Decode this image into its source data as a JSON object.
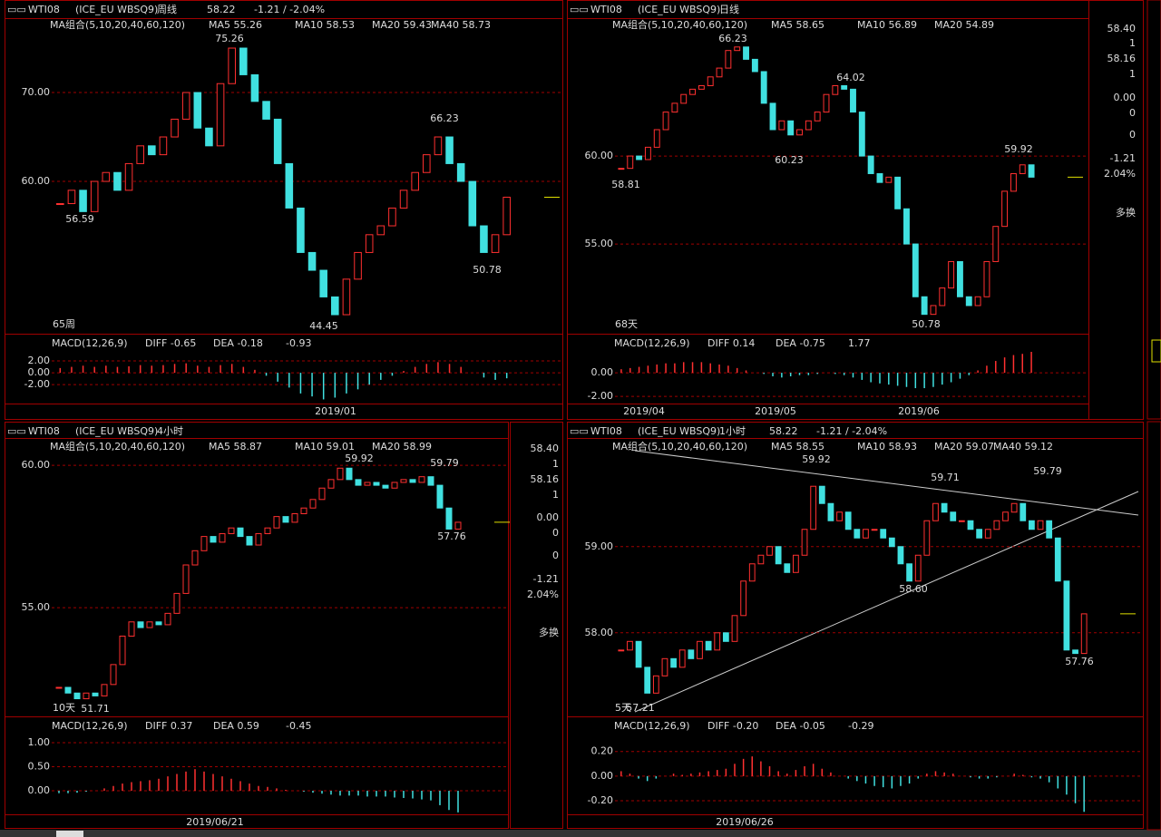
{
  "panels": [
    {
      "header": {
        "symbol": "WTI08",
        "contract": "(ICE_EU WBSQ9)",
        "period": "周线",
        "price": "58.22",
        "change": "-1.21 / -2.04%"
      },
      "ma": [
        "MA组合(5,10,20,40,60,120)",
        "MA5 55.26",
        "MA10 58.53",
        "MA20 59.43",
        "MA40 58.73"
      ],
      "macd": {
        "name": "MACD(12,26,9)",
        "diff": "DIFF -0.65",
        "dea": "DEA -0.18",
        "value": "-0.93"
      },
      "price_axis": {
        "ylim": [
          42.86,
          78.37
        ],
        "yticks": [
          {
            "value": 70,
            "label": "70.00"
          },
          {
            "value": 60,
            "label": "60.00"
          }
        ]
      },
      "macd_axis": {
        "ylim": [
          -5.2,
          6.3
        ],
        "yticks": [
          {
            "value": 2,
            "label": "2.00"
          },
          {
            "value": 0,
            "label": "0.00"
          },
          {
            "value": -2,
            "label": "-2.00"
          }
        ]
      },
      "dates": [
        "2019/01"
      ],
      "count": "65周",
      "annotations": [
        {
          "text": "75.26",
          "color": "#ff4040"
        },
        {
          "text": "66.23",
          "color": "#ff4040"
        },
        {
          "text": "56.59",
          "color": "#40e0e0"
        },
        {
          "text": "44.45",
          "color": "#40e0e0"
        },
        {
          "text": "50.78",
          "color": "#40e0e0"
        }
      ],
      "closes": [
        57.5,
        59,
        56.6,
        60,
        61,
        59,
        62,
        64,
        63,
        65,
        67,
        70,
        66,
        64,
        71,
        75,
        72,
        69,
        67,
        62,
        57,
        52,
        50,
        47,
        45,
        49,
        52,
        54,
        55,
        57,
        59,
        61,
        63,
        65,
        62,
        60,
        55,
        52,
        54,
        58.22
      ],
      "histogram": [
        0.8,
        1,
        1.2,
        1,
        1.2,
        1,
        1.1,
        1.3,
        1.2,
        1.3,
        1.5,
        1.6,
        1.2,
        1,
        1.3,
        1.5,
        1,
        0.5,
        -0.5,
        -1.5,
        -2.5,
        -3.5,
        -4,
        -4.5,
        -4.2,
        -3.5,
        -2.8,
        -2,
        -1.2,
        -0.5,
        0.3,
        1,
        1.5,
        1.8,
        1.5,
        1,
        0,
        -0.8,
        -1.2,
        -0.93
      ]
    },
    {
      "header": {
        "symbol": "WTI08",
        "contract": "(ICE_EU WBSQ9)",
        "period": "日线"
      },
      "ma": [
        "MA组合(5,10,20,40,60,120)",
        "MA5 58.65",
        "MA10 56.89",
        "MA20 54.89"
      ],
      "macd": {
        "name": "MACD(12,26,9)",
        "diff": "DIFF 0.14",
        "dea": "DEA -0.75",
        "value": "1.77"
      },
      "price_axis": {
        "ylim": [
          49.9,
          67.84
        ],
        "yticks": [
          {
            "value": 60,
            "label": "60.00"
          },
          {
            "value": 55,
            "label": "55.00"
          }
        ]
      },
      "macd_axis": {
        "ylim": [
          -2.6,
          3.15
        ],
        "yticks": [
          {
            "value": 0,
            "label": "0.00"
          },
          {
            "value": -2,
            "label": "-2.00"
          }
        ]
      },
      "dates": [
        "2019/04",
        "2019/05",
        "2019/06"
      ],
      "count": "68天",
      "annotations": [
        {
          "text": "66.23",
          "color": "#ff4040"
        },
        {
          "text": "64.02",
          "color": "#ff4040"
        },
        {
          "text": "59.92",
          "color": "#ff4040"
        },
        {
          "text": "60.23",
          "color": "#40e0e0"
        },
        {
          "text": "58.81",
          "color": "#40e0e0"
        },
        {
          "text": "50.78",
          "color": "#40e0e0"
        }
      ],
      "closes": [
        59.3,
        60,
        59.8,
        60.5,
        61.5,
        62.5,
        63,
        63.5,
        63.8,
        64,
        64.5,
        65,
        66,
        66.2,
        65.5,
        64.8,
        63,
        61.5,
        62,
        61.2,
        61.5,
        62,
        62.5,
        63.5,
        64,
        63.8,
        62.5,
        60,
        59,
        58.5,
        58.8,
        57,
        55,
        52,
        51,
        51.5,
        52.5,
        54,
        52,
        51.5,
        52,
        54,
        56,
        58,
        59,
        59.5,
        58.8
      ],
      "histogram": [
        0.3,
        0.4,
        0.5,
        0.6,
        0.7,
        0.8,
        0.8,
        0.9,
        0.9,
        0.9,
        0.8,
        0.7,
        0.6,
        0.4,
        0.2,
        0,
        -0.1,
        -0.3,
        -0.4,
        -0.3,
        -0.2,
        -0.2,
        -0.1,
        0,
        -0.1,
        -0.2,
        -0.4,
        -0.6,
        -0.8,
        -0.9,
        -1,
        -1.1,
        -1.2,
        -1.3,
        -1.3,
        -1.2,
        -1,
        -0.8,
        -0.5,
        -0.2,
        0.2,
        0.6,
        1,
        1.3,
        1.5,
        1.6,
        1.77
      ],
      "side": [
        {
          "text": "58.40",
          "color": "#30d030"
        },
        {
          "text": "1",
          "color": "#e0e000"
        },
        {
          "text": "58.16",
          "color": "#30d030"
        },
        {
          "text": "1",
          "color": "#e0e000"
        },
        {
          "text": "0.00",
          "color": "#ffffff"
        },
        {
          "text": "0",
          "color": "#e0e000"
        },
        {
          "text": "0",
          "color": "#e0e000"
        },
        {
          "text": "-1.21",
          "color": "#30d030"
        },
        {
          "text": "2.04%",
          "color": "#30d030"
        },
        {
          "text": "多换",
          "color": "#e0e000"
        }
      ]
    },
    {
      "header": {
        "symbol": "WTI08",
        "contract": "(ICE_EU WBSQ9)",
        "period": "4小时"
      },
      "ma": [
        "MA组合(5,10,20,40,60,120)",
        "MA5 58.87",
        "MA10 59.01",
        "MA20 58.99"
      ],
      "macd": {
        "name": "MACD(12,26,9)",
        "diff": "DIFF 0.37",
        "dea": "DEA 0.59",
        "value": "-0.45"
      },
      "price_axis": {
        "ylim": [
          51.18,
          60.96
        ],
        "yticks": [
          {
            "value": 60,
            "label": "60.00"
          },
          {
            "value": 55,
            "label": "55.00"
          }
        ]
      },
      "macd_axis": {
        "ylim": [
          -0.49,
          1.51
        ],
        "yticks": [
          {
            "value": 1,
            "label": "1.00"
          },
          {
            "value": 0.5,
            "label": "0.50"
          },
          {
            "value": 0,
            "label": "0.00"
          }
        ]
      },
      "dates": [
        "2019/06/21"
      ],
      "count": "10天",
      "annotations": [
        {
          "text": "59.92",
          "color": "#ff4040"
        },
        {
          "text": "59.79",
          "color": "#ff4040"
        },
        {
          "text": "57.76",
          "color": "#40e0e0"
        },
        {
          "text": "51.71",
          "color": "#40e0e0"
        }
      ],
      "closes": [
        52.2,
        52,
        51.8,
        52,
        51.9,
        52.3,
        53,
        54,
        54.5,
        54.3,
        54.5,
        54.4,
        54.8,
        55.5,
        56.5,
        57,
        57.5,
        57.3,
        57.6,
        57.8,
        57.5,
        57.2,
        57.6,
        57.8,
        58.2,
        58,
        58.3,
        58.5,
        58.8,
        59.2,
        59.5,
        59.9,
        59.5,
        59.3,
        59.4,
        59.3,
        59.2,
        59.4,
        59.5,
        59.4,
        59.6,
        59.3,
        58.5,
        57.76,
        58.0
      ],
      "histogram": [
        -0.05,
        -0.05,
        -0.04,
        -0.02,
        0,
        0.05,
        0.1,
        0.15,
        0.18,
        0.2,
        0.22,
        0.25,
        0.3,
        0.35,
        0.4,
        0.45,
        0.4,
        0.35,
        0.3,
        0.25,
        0.2,
        0.15,
        0.1,
        0.08,
        0.05,
        0.02,
        0,
        -0.02,
        -0.04,
        -0.06,
        -0.08,
        -0.1,
        -0.1,
        -0.1,
        -0.12,
        -0.12,
        -0.12,
        -0.14,
        -0.15,
        -0.16,
        -0.18,
        -0.2,
        -0.3,
        -0.4,
        -0.45
      ],
      "side": [
        {
          "text": "58.40",
          "color": "#30d030"
        },
        {
          "text": "1",
          "color": "#e0e000"
        },
        {
          "text": "58.16",
          "color": "#30d030"
        },
        {
          "text": "1",
          "color": "#e0e000"
        },
        {
          "text": "0.00",
          "color": "#ffffff"
        },
        {
          "text": "0",
          "color": "#e0e000"
        },
        {
          "text": "0",
          "color": "#e0e000"
        },
        {
          "text": "-1.21",
          "color": "#30d030"
        },
        {
          "text": "2.04%",
          "color": "#30d030"
        },
        {
          "text": "多换",
          "color": "#e0e000"
        }
      ]
    },
    {
      "header": {
        "symbol": "WTI08",
        "contract": "(ICE_EU WBSQ9)",
        "period": "1小时",
        "price": "58.22",
        "change": "-1.21 / -2.04%"
      },
      "ma": [
        "MA组合(5,10,20,40,60,120)",
        "MA5 58.55",
        "MA10 58.93",
        "MA20 59.07",
        "MA40 59.12"
      ],
      "macd": {
        "name": "MACD(12,26,9)",
        "diff": "DIFF -0.20",
        "dea": "DEA -0.05",
        "value": "-0.29"
      },
      "price_axis": {
        "ylim": [
          57.03,
          60.26
        ],
        "yticks": [
          {
            "value": 59,
            "label": "59.00"
          },
          {
            "value": 58,
            "label": "58.00"
          }
        ]
      },
      "macd_axis": {
        "ylim": [
          -0.31,
          0.47
        ],
        "yticks": [
          {
            "value": 0.2,
            "label": "0.20"
          },
          {
            "value": 0,
            "label": "0.00"
          },
          {
            "value": -0.2,
            "label": "-0.20"
          }
        ]
      },
      "dates": [
        "2019/06/26"
      ],
      "count": "5天",
      "annotations": [
        {
          "text": "59.92",
          "color": "#ff4040"
        },
        {
          "text": "59.71",
          "color": "#ff4040"
        },
        {
          "text": "59.79",
          "color": "#ff4040"
        },
        {
          "text": "58.60",
          "color": "#40e0e0"
        },
        {
          "text": "57.76",
          "color": "#40e0e0"
        },
        {
          "text": "57.21",
          "color": "#40e0e0"
        }
      ],
      "closes": [
        57.8,
        57.9,
        57.6,
        57.3,
        57.5,
        57.7,
        57.6,
        57.8,
        57.7,
        57.9,
        57.8,
        58,
        57.9,
        58.2,
        58.6,
        58.8,
        58.9,
        59,
        58.8,
        58.7,
        58.9,
        59.2,
        59.7,
        59.5,
        59.3,
        59.4,
        59.2,
        59.1,
        59.2,
        59.2,
        59.1,
        59,
        58.8,
        58.6,
        58.9,
        59.3,
        59.5,
        59.4,
        59.3,
        59.3,
        59.2,
        59.1,
        59.2,
        59.3,
        59.4,
        59.5,
        59.3,
        59.2,
        59.3,
        59.1,
        58.6,
        57.8,
        57.76,
        58.22
      ],
      "histogram": [
        0.04,
        0.02,
        -0.02,
        -0.04,
        -0.02,
        0,
        0.02,
        0.01,
        0.02,
        0.03,
        0.04,
        0.05,
        0.06,
        0.1,
        0.14,
        0.16,
        0.12,
        0.08,
        0.04,
        0.02,
        0.05,
        0.08,
        0.1,
        0.06,
        0.03,
        0,
        -0.02,
        -0.04,
        -0.06,
        -0.08,
        -0.09,
        -0.1,
        -0.08,
        -0.06,
        -0.02,
        0.02,
        0.04,
        0.03,
        0.02,
        0,
        -0.01,
        -0.02,
        -0.02,
        -0.01,
        0,
        0.02,
        0.01,
        -0.01,
        -0.02,
        -0.05,
        -0.1,
        -0.15,
        -0.22,
        -0.29
      ]
    }
  ]
}
